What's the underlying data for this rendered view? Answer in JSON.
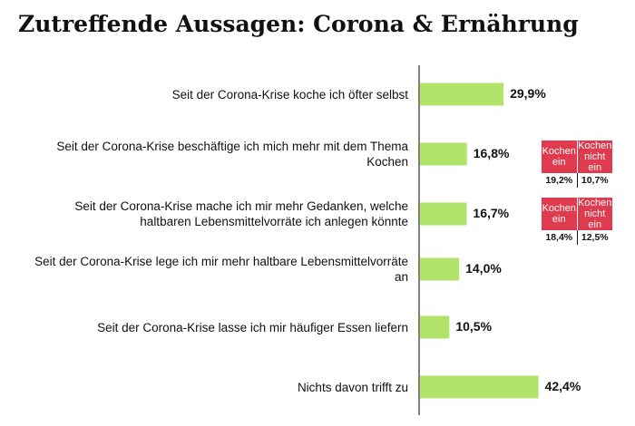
{
  "chart_data": {
    "type": "bar",
    "orientation": "horizontal",
    "title": "Zutreffende Aussagen: Corona & Ernährung",
    "categories": [
      "Seit der Corona-Krise koche ich öfter selbst",
      "Seit der Corona-Krise beschäftige ich mich mehr mit dem Thema Kochen",
      "Seit der Corona-Krise mache ich mir mehr Gedanken, welche haltbaren Lebensmittelvorräte ich anlegen könnte",
      "Seit der Corona-Krise lege ich mir mehr haltbare Lebensmittelvorräte an",
      "Seit der Corona-Krise lasse ich mir häufiger Essen liefern",
      "Nichts davon trifft zu"
    ],
    "values": [
      29.9,
      16.8,
      16.7,
      14.0,
      10.5,
      42.4
    ],
    "value_labels": [
      "29,9%",
      "16,8%",
      "16,7%",
      "14,0%",
      "10,5%",
      "42,4%"
    ],
    "xlim": [
      0,
      50
    ],
    "bar_color": "#b2e36b",
    "grid": false,
    "breakdowns": [
      {
        "category_index": 1,
        "headers": [
          "Kochen ein",
          "Kochen nicht ein"
        ],
        "values": [
          "19,2%",
          "10,7%"
        ],
        "color": "#e03a4e"
      },
      {
        "category_index": 2,
        "headers": [
          "Kochen ein",
          "Kochen nicht ein"
        ],
        "values": [
          "18,4%",
          "12,5%"
        ],
        "color": "#e03a4e"
      }
    ]
  }
}
